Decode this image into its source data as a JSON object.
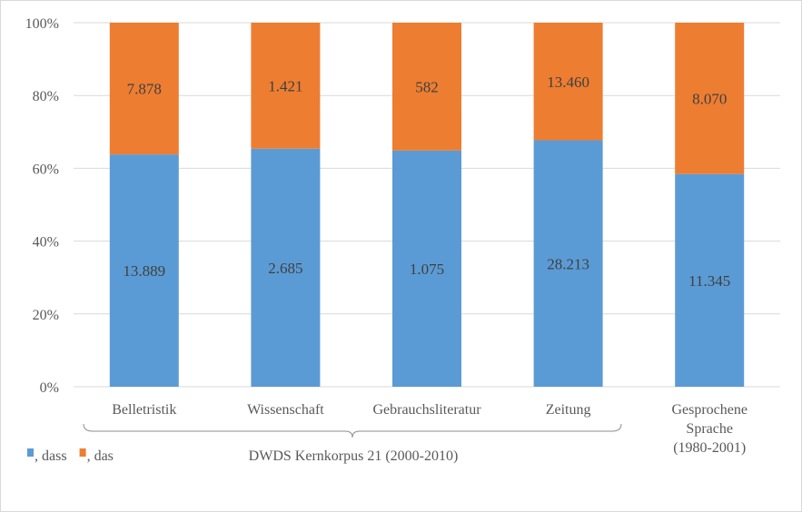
{
  "chart_data": {
    "type": "bar",
    "stacked": "percent",
    "categories": [
      "Belletristik",
      "Wissenschaft",
      "Gebrauchsliteratur",
      "Zeitung",
      "Gesprochene Sprache (1980-2001)"
    ],
    "category_lines": [
      [
        "Belletristik"
      ],
      [
        "Wissenschaft"
      ],
      [
        "Gebrauchsliteratur"
      ],
      [
        "Zeitung"
      ],
      [
        "Gesprochene",
        "Sprache",
        "(1980-2001)"
      ]
    ],
    "series": [
      {
        "name": ", dass",
        "color": "#5b9bd5",
        "values": [
          13889,
          2685,
          1075,
          28213,
          11345
        ],
        "labels": [
          "13.889",
          "2.685",
          "1.075",
          "28.213",
          "11.345"
        ]
      },
      {
        "name": ", das",
        "color": "#ed7d31",
        "values": [
          7878,
          1421,
          582,
          13460,
          8070
        ],
        "labels": [
          "7.878",
          "1.421",
          "582",
          "13.460",
          "8.070"
        ]
      }
    ],
    "yticks": [
      "0%",
      "20%",
      "40%",
      "60%",
      "80%",
      "100%"
    ],
    "ylim": [
      0,
      100
    ],
    "grid": true,
    "legend": "bottom-left",
    "group_annotation": {
      "text": "DWDS Kernkorpus 21 (2000-2010)",
      "spans": [
        "Belletristik",
        "Wissenschaft",
        "Gebrauchsliteratur",
        "Zeitung"
      ]
    }
  }
}
